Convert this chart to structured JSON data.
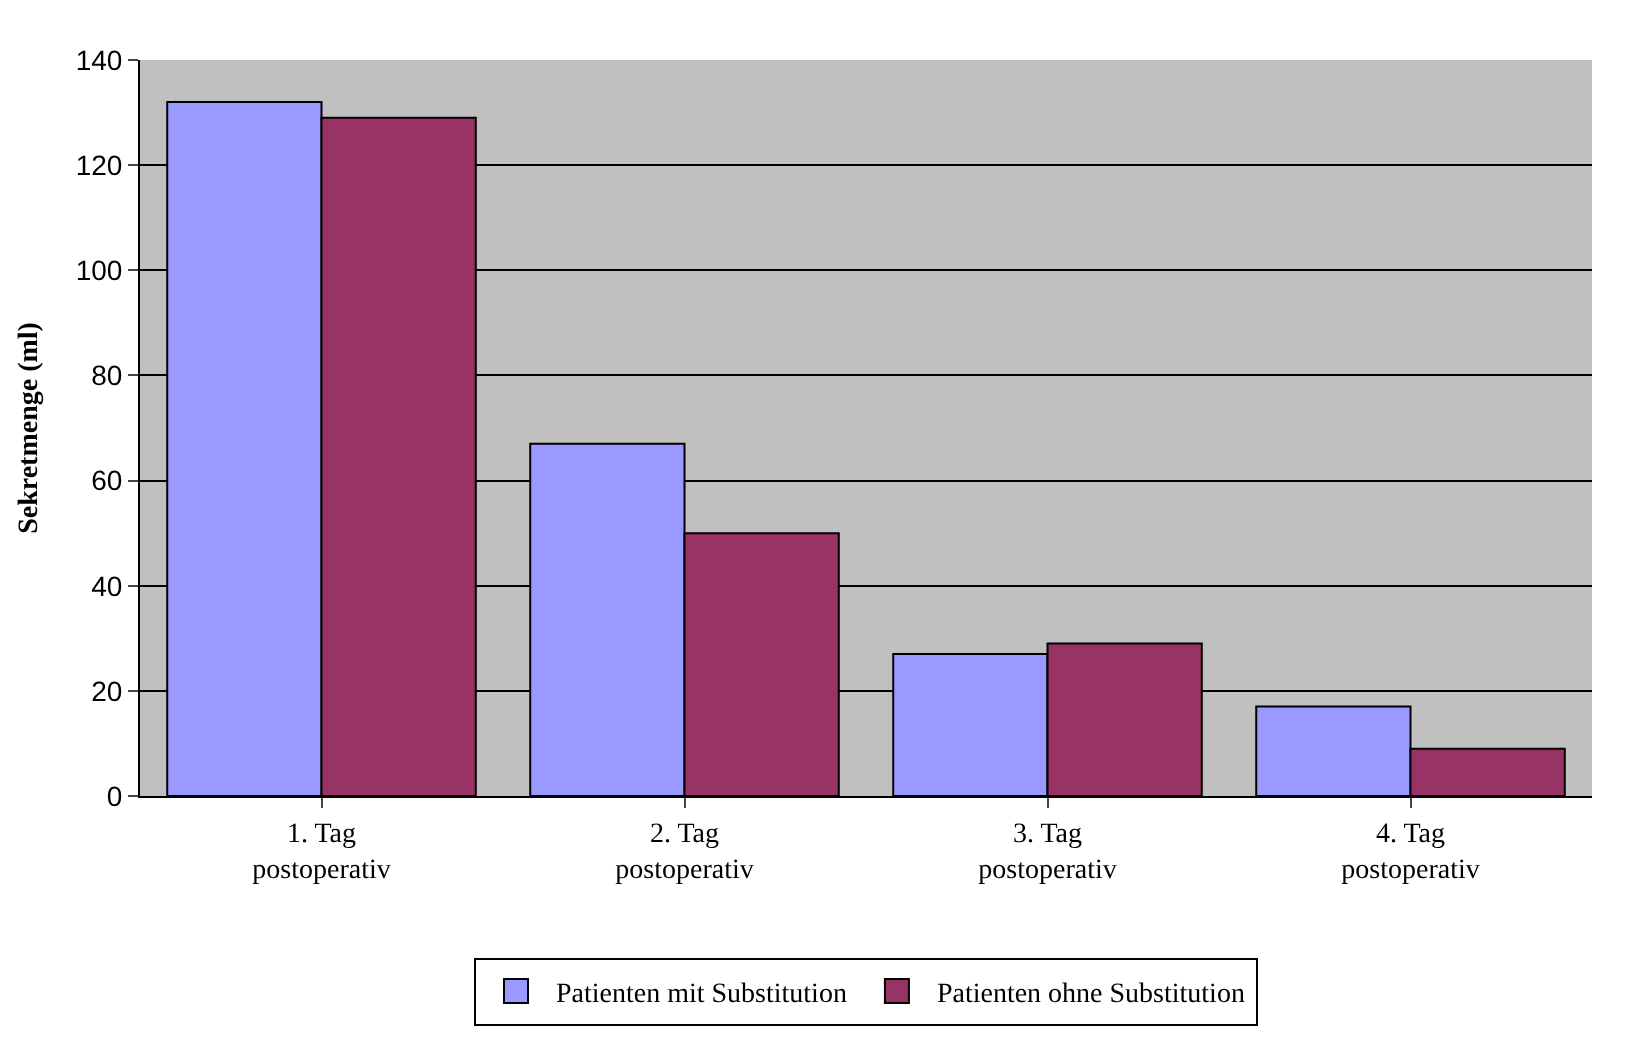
{
  "chart_data": {
    "type": "bar",
    "ylabel": "Sekretmenge (ml)",
    "categories": [
      "1. Tag\npostoperativ",
      "2. Tag\npostoperativ",
      "3. Tag\npostoperativ",
      "4. Tag\npostoperativ"
    ],
    "series": [
      {
        "name": "Patienten mit Substitution",
        "color": "#9999ff",
        "values": [
          132,
          67,
          27,
          17
        ]
      },
      {
        "name": "Patienten ohne Substitution",
        "color": "#993366",
        "values": [
          129,
          50,
          29,
          9
        ]
      }
    ],
    "ylim": [
      0,
      140
    ],
    "yticks": [
      0,
      20,
      40,
      60,
      80,
      100,
      120,
      140
    ],
    "grid": "y",
    "legend": "bottom"
  }
}
